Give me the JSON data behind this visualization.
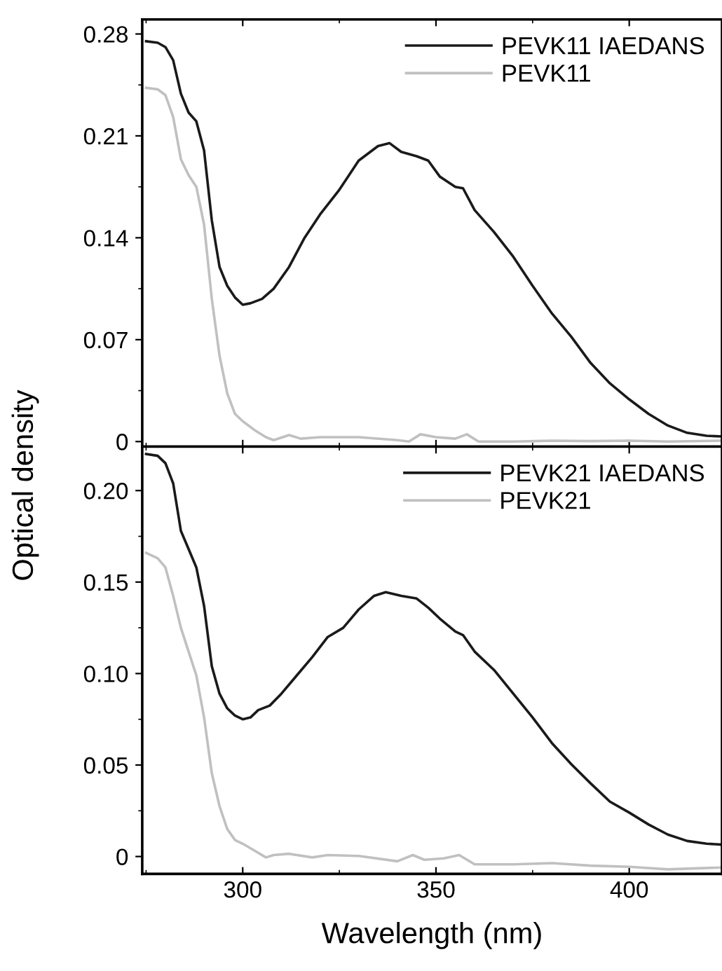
{
  "chart_data": [
    {
      "type": "line",
      "ylabel": "Optical density",
      "xlim": [
        274,
        424
      ],
      "ylim": [
        -0.0035,
        0.29
      ],
      "xticks": [
        300,
        350,
        400
      ],
      "yticks": [
        0,
        0.07,
        0.14,
        0.21,
        0.28
      ],
      "tick_labels": "y",
      "legend": "top right",
      "grid": false,
      "x": [
        275,
        278,
        280,
        282,
        284,
        286,
        288,
        290,
        292,
        294,
        296,
        298,
        300,
        302,
        305,
        308,
        312,
        316,
        320,
        325,
        330,
        335,
        338,
        341,
        345,
        348,
        351,
        355,
        357,
        360,
        365,
        370,
        375,
        380,
        385,
        390,
        395,
        400,
        405,
        410,
        415,
        420,
        424
      ],
      "series": [
        {
          "name": "PEVK11 IAEDANS",
          "color": "#1a1a1a",
          "values": [
            0.275,
            0.274,
            0.271,
            0.262,
            0.239,
            0.226,
            0.22,
            0.2,
            0.152,
            0.12,
            0.107,
            0.099,
            0.094,
            0.095,
            0.098,
            0.105,
            0.12,
            0.14,
            0.156,
            0.173,
            0.193,
            0.203,
            0.205,
            0.199,
            0.196,
            0.193,
            0.182,
            0.175,
            0.174,
            0.159,
            0.144,
            0.127,
            0.107,
            0.088,
            0.072,
            0.054,
            0.04,
            0.029,
            0.019,
            0.011,
            0.006,
            0.004,
            0.0035
          ]
        },
        {
          "name": "PEVK11",
          "color": "#c0c0c0",
          "x": [
            275,
            278,
            280,
            282,
            284,
            286,
            288,
            290,
            292,
            294,
            296,
            298,
            300,
            303,
            306,
            308,
            312,
            315,
            320,
            330,
            340,
            343,
            346,
            350,
            355,
            358,
            361,
            370,
            380,
            390,
            400,
            410,
            424
          ],
          "values": [
            0.243,
            0.242,
            0.238,
            0.223,
            0.194,
            0.183,
            0.175,
            0.149,
            0.098,
            0.059,
            0.033,
            0.019,
            0.014,
            0.008,
            0.003,
            0.001,
            0.0045,
            0.002,
            0.003,
            0.003,
            0.001,
            0,
            0.005,
            0.003,
            0.002,
            0.005,
            0,
            0,
            0.0006,
            0.0003,
            0.0006,
            0,
            0.0006
          ]
        }
      ]
    },
    {
      "type": "line",
      "xlabel": "Wavelength (nm)",
      "xlim": [
        274,
        424
      ],
      "ylim": [
        -0.0095,
        0.224
      ],
      "xticks": [
        300,
        350,
        400
      ],
      "yticks": [
        {
          "value": 0,
          "label": "0"
        },
        {
          "value": 0.05,
          "label": "0.05"
        },
        {
          "value": 0.1,
          "label": "0.10"
        },
        {
          "value": 0.15,
          "label": "0.15"
        },
        {
          "value": 0.2,
          "label": "0.20"
        }
      ],
      "legend": "top right",
      "grid": false,
      "x": [
        275,
        278,
        280,
        282,
        284,
        286,
        288,
        290,
        292,
        294,
        296,
        298,
        300,
        302,
        304,
        307,
        310,
        314,
        318,
        322,
        326,
        330,
        334,
        337,
        341,
        345,
        348,
        351,
        355,
        357,
        360,
        365,
        370,
        375,
        380,
        385,
        390,
        395,
        400,
        405,
        410,
        415,
        420,
        424
      ],
      "series": [
        {
          "name": "PEVK21 IAEDANS",
          "color": "#1a1a1a",
          "values": [
            0.22,
            0.219,
            0.215,
            0.204,
            0.178,
            0.168,
            0.158,
            0.137,
            0.104,
            0.089,
            0.081,
            0.077,
            0.075,
            0.076,
            0.08,
            0.0825,
            0.089,
            0.099,
            0.109,
            0.12,
            0.125,
            0.135,
            0.1425,
            0.1445,
            0.1425,
            0.141,
            0.136,
            0.13,
            0.123,
            0.121,
            0.112,
            0.102,
            0.089,
            0.076,
            0.062,
            0.0505,
            0.04,
            0.03,
            0.024,
            0.0175,
            0.012,
            0.0085,
            0.007,
            0.0065
          ]
        },
        {
          "name": "PEVK21",
          "color": "#c0c0c0",
          "x": [
            275,
            278,
            280,
            282,
            284,
            286,
            288,
            290,
            292,
            294,
            296,
            298,
            300,
            303,
            306,
            308,
            312,
            318,
            322,
            330,
            340,
            344,
            347,
            352,
            356,
            360,
            370,
            380,
            390,
            400,
            410,
            424
          ],
          "values": [
            0.166,
            0.163,
            0.158,
            0.1425,
            0.125,
            0.112,
            0.099,
            0.076,
            0.0455,
            0.0275,
            0.015,
            0.009,
            0.007,
            0.0033,
            -0.0005,
            0.0008,
            0.0015,
            -0.0005,
            0.0008,
            0.0003,
            -0.0026,
            0.0008,
            -0.0018,
            -0.001,
            0.0008,
            -0.0043,
            -0.0043,
            -0.0036,
            -0.005,
            -0.0056,
            -0.007,
            -0.006
          ]
        }
      ]
    }
  ]
}
